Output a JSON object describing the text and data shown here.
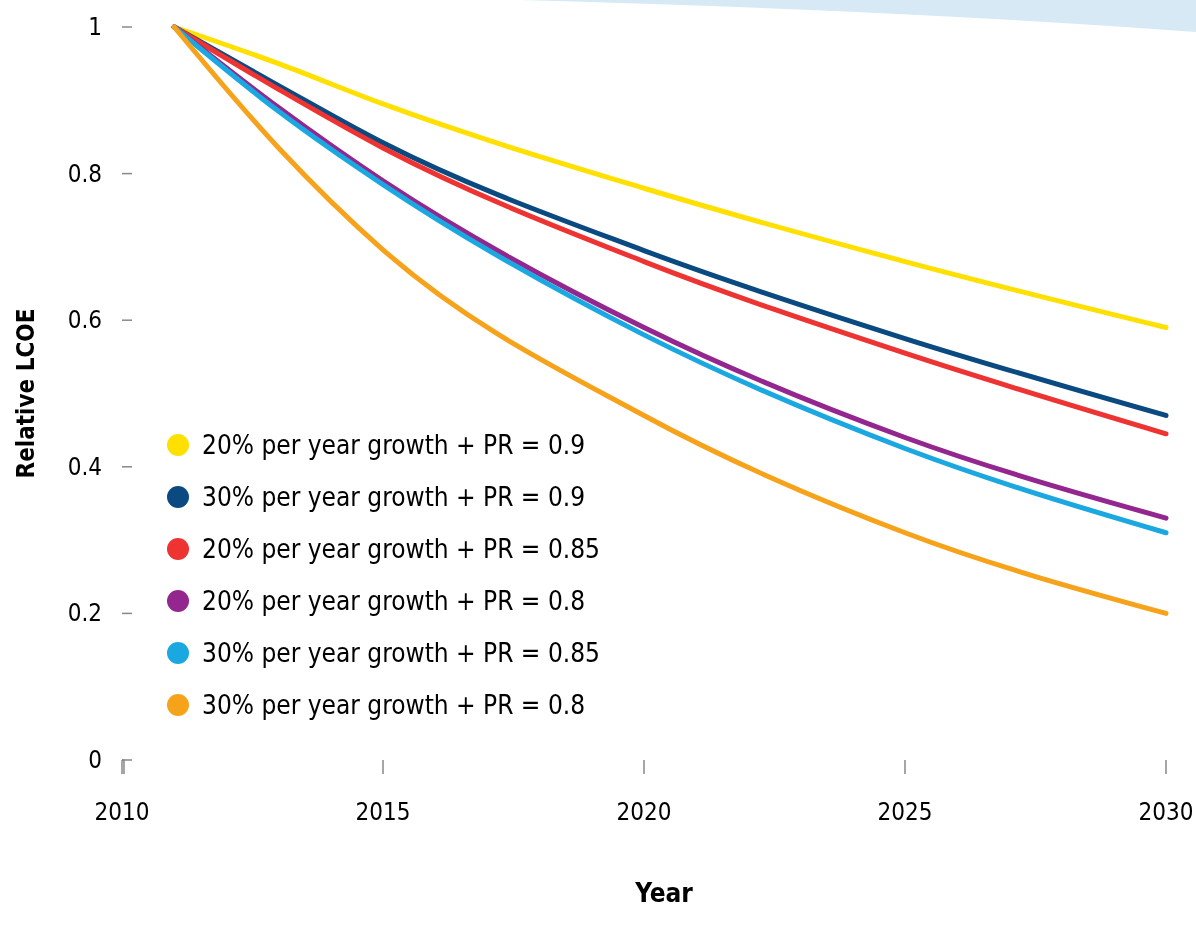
{
  "chart_data": {
    "type": "line",
    "xlabel": "Year",
    "ylabel": "Relative LCOE",
    "x": [
      2011,
      2013,
      2015,
      2020,
      2025,
      2030
    ],
    "xlim": [
      2010,
      2030
    ],
    "xticks": [
      2010,
      2015,
      2020,
      2025,
      2030
    ],
    "ylim": [
      0,
      1
    ],
    "yticks": [
      0,
      0.2,
      0.4,
      0.6,
      0.8,
      1
    ],
    "grid": false,
    "legend": "left",
    "marker": "none",
    "line_style": "solid",
    "series": [
      {
        "name": "20% per year growth + PR = 0.9",
        "color": "#ffe000",
        "values": [
          1,
          0.95,
          0.895,
          0.78,
          0.68,
          0.59
        ]
      },
      {
        "name": "30% per year growth + PR = 0.9",
        "color": "#0a4a80",
        "values": [
          1,
          0.92,
          0.842,
          0.695,
          0.575,
          0.47
        ]
      },
      {
        "name": "20% per year growth + PR = 0.85",
        "color": "#ee3333",
        "values": [
          1,
          0.915,
          0.835,
          0.68,
          0.555,
          0.445
        ]
      },
      {
        "name": "20% per year growth + PR = 0.8",
        "color": "#93278f",
        "values": [
          1,
          0.89,
          0.79,
          0.59,
          0.44,
          0.33
        ]
      },
      {
        "name": "30% per year growth + PR = 0.85",
        "color": "#1ba8e0",
        "values": [
          1,
          0.885,
          0.785,
          0.58,
          0.425,
          0.31
        ]
      },
      {
        "name": "30% per year growth + PR = 0.8",
        "color": "#f7a21b",
        "values": [
          1,
          0.835,
          0.696,
          0.47,
          0.31,
          0.2
        ]
      }
    ]
  }
}
